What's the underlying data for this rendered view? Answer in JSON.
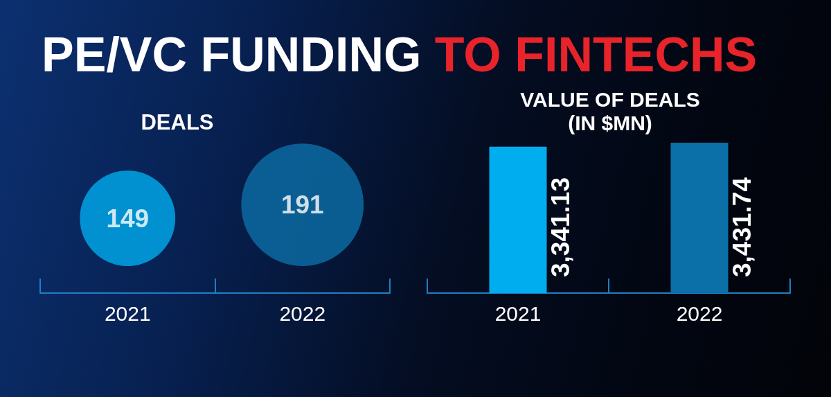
{
  "chart_data": [
    {
      "type": "other",
      "title": "PE/VC FUNDING TO FINTECHS",
      "subtitle": "DEALS",
      "categories": [
        "2021",
        "2022"
      ],
      "values": [
        149,
        191
      ],
      "colors": [
        "#00adef",
        "#0b6fa8"
      ],
      "data_labels": true
    },
    {
      "type": "bar",
      "title": "VALUE OF DEALS (IN $MN)",
      "categories": [
        "2021",
        "2022"
      ],
      "values": [
        3341.13,
        3431.74
      ],
      "colors": [
        "#00adef",
        "#0b6fa8"
      ],
      "value_labels": [
        "3,341.13",
        "3,431.74"
      ],
      "tick_labels": "x"
    }
  ]
}
